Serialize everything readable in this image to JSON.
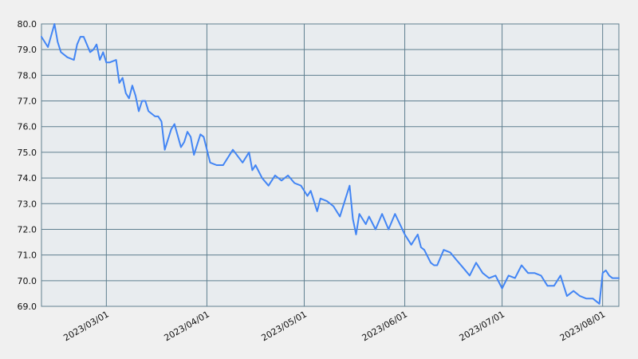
{
  "chart_data": {
    "type": "line",
    "title": "",
    "xlabel": "",
    "ylabel": "",
    "ylim": [
      69.0,
      80.0
    ],
    "xlim": [
      "2023-02-09",
      "2023-08-06"
    ],
    "y_ticks": [
      "80.0",
      "79.0",
      "78.0",
      "77.0",
      "76.0",
      "75.0",
      "74.0",
      "73.0",
      "72.0",
      "71.0",
      "70.0",
      "69.0"
    ],
    "x_ticks": [
      "2023/03/01",
      "2023/04/01",
      "2023/05/01",
      "2023/06/01",
      "2023/07/01",
      "2023/08/01"
    ],
    "grid": true,
    "colors": {
      "line": "#4285f4",
      "grid": "#5f7f8f",
      "background": "#f0f0f0",
      "plot_background": "#e8ecef"
    },
    "series": [
      {
        "name": "",
        "x": [
          "2023-02-09",
          "2023-02-11",
          "2023-02-13",
          "2023-02-14",
          "2023-02-15",
          "2023-02-17",
          "2023-02-19",
          "2023-02-20",
          "2023-02-21",
          "2023-02-22",
          "2023-02-24",
          "2023-02-25",
          "2023-02-26",
          "2023-02-27",
          "2023-02-28",
          "2023-03-01",
          "2023-03-02",
          "2023-03-04",
          "2023-03-05",
          "2023-03-06",
          "2023-03-07",
          "2023-03-08",
          "2023-03-09",
          "2023-03-10",
          "2023-03-11",
          "2023-03-12",
          "2023-03-13",
          "2023-03-14",
          "2023-03-16",
          "2023-03-17",
          "2023-03-18",
          "2023-03-19",
          "2023-03-21",
          "2023-03-22",
          "2023-03-24",
          "2023-03-25",
          "2023-03-26",
          "2023-03-27",
          "2023-03-28",
          "2023-03-30",
          "2023-03-31",
          "2023-04-02",
          "2023-04-04",
          "2023-04-06",
          "2023-04-09",
          "2023-04-12",
          "2023-04-14",
          "2023-04-15",
          "2023-04-16",
          "2023-04-18",
          "2023-04-20",
          "2023-04-22",
          "2023-04-24",
          "2023-04-26",
          "2023-04-28",
          "2023-04-30",
          "2023-05-02",
          "2023-05-03",
          "2023-05-05",
          "2023-05-06",
          "2023-05-08",
          "2023-05-10",
          "2023-05-12",
          "2023-05-14",
          "2023-05-15",
          "2023-05-16",
          "2023-05-17",
          "2023-05-18",
          "2023-05-20",
          "2023-05-21",
          "2023-05-23",
          "2023-05-25",
          "2023-05-27",
          "2023-05-29",
          "2023-06-01",
          "2023-06-02",
          "2023-06-03",
          "2023-06-05",
          "2023-06-06",
          "2023-06-07",
          "2023-06-09",
          "2023-06-10",
          "2023-06-11",
          "2023-06-13",
          "2023-06-15",
          "2023-06-17",
          "2023-06-19",
          "2023-06-21",
          "2023-06-23",
          "2023-06-25",
          "2023-06-27",
          "2023-06-29",
          "2023-07-01",
          "2023-07-03",
          "2023-07-05",
          "2023-07-07",
          "2023-07-09",
          "2023-07-11",
          "2023-07-13",
          "2023-07-15",
          "2023-07-17",
          "2023-07-19",
          "2023-07-21",
          "2023-07-23",
          "2023-07-25",
          "2023-07-27",
          "2023-07-29",
          "2023-07-31",
          "2023-08-01",
          "2023-08-02",
          "2023-08-03",
          "2023-08-04",
          "2023-08-05",
          "2023-08-06"
        ],
        "values": [
          79.5,
          79.1,
          80.0,
          79.3,
          78.9,
          78.7,
          78.6,
          79.2,
          79.5,
          79.5,
          78.9,
          79.0,
          79.2,
          78.6,
          78.9,
          78.5,
          78.5,
          78.6,
          77.7,
          77.9,
          77.3,
          77.1,
          77.6,
          77.2,
          76.6,
          77.0,
          77.0,
          76.6,
          76.4,
          76.4,
          76.2,
          75.1,
          75.9,
          76.1,
          75.2,
          75.4,
          75.8,
          75.6,
          74.9,
          75.7,
          75.6,
          74.6,
          74.5,
          74.5,
          75.1,
          74.6,
          75.0,
          74.3,
          74.5,
          74.0,
          73.7,
          74.1,
          73.9,
          74.1,
          73.8,
          73.7,
          73.3,
          73.5,
          72.7,
          73.2,
          73.1,
          72.9,
          72.5,
          73.3,
          73.7,
          72.4,
          71.8,
          72.6,
          72.2,
          72.5,
          72.0,
          72.6,
          72.0,
          72.6,
          71.8,
          71.6,
          71.4,
          71.8,
          71.3,
          71.2,
          70.7,
          70.6,
          70.6,
          71.2,
          71.1,
          70.8,
          70.5,
          70.2,
          70.7,
          70.3,
          70.1,
          70.2,
          69.7,
          70.2,
          70.1,
          70.6,
          70.3,
          70.3,
          70.2,
          69.8,
          69.8,
          70.2,
          69.4,
          69.6,
          69.4,
          69.3,
          69.3,
          69.1,
          70.3,
          70.4,
          70.2,
          70.1,
          70.1,
          70.1
        ]
      }
    ]
  }
}
